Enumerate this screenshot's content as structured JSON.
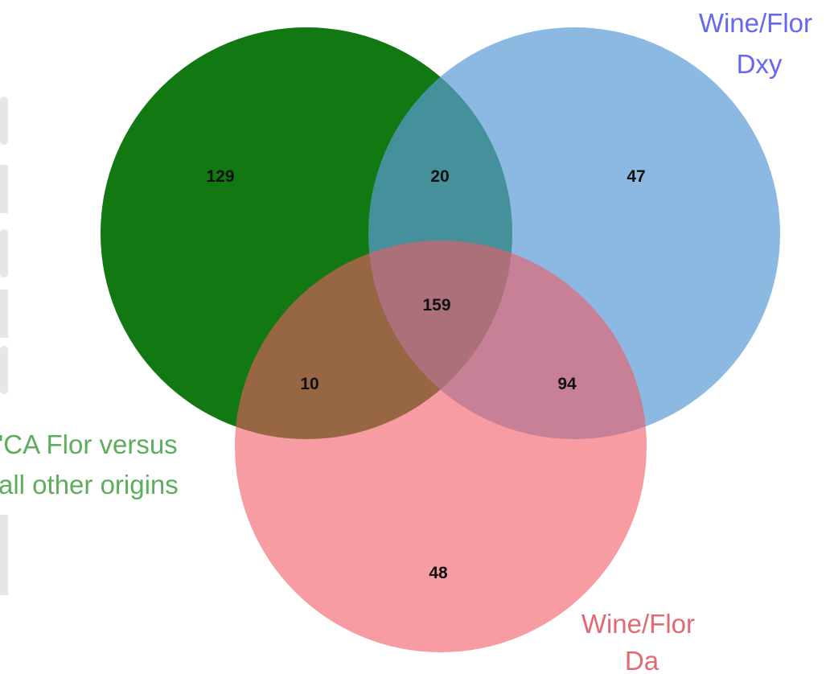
{
  "diagram": {
    "sets": [
      {
        "id": "pca",
        "label_lines": [
          "'CA Flor versus",
          "all other origins"
        ],
        "color": "#127812",
        "label_color": "#5cad5c"
      },
      {
        "id": "dxy",
        "label_lines": [
          "Wine/Flor",
          "Dxy"
        ],
        "color": "#5b9bd5",
        "label_color": "#6666ee"
      },
      {
        "id": "da",
        "label_lines": [
          "Wine/Flor",
          "Da"
        ],
        "color": "#f05a64",
        "label_color": "#e06a72"
      }
    ],
    "regions": {
      "pca_only": "129",
      "dxy_only": "47",
      "da_only": "48",
      "pca_dxy": "20",
      "pca_da": "10",
      "dxy_da": "94",
      "all_three": "159"
    }
  }
}
